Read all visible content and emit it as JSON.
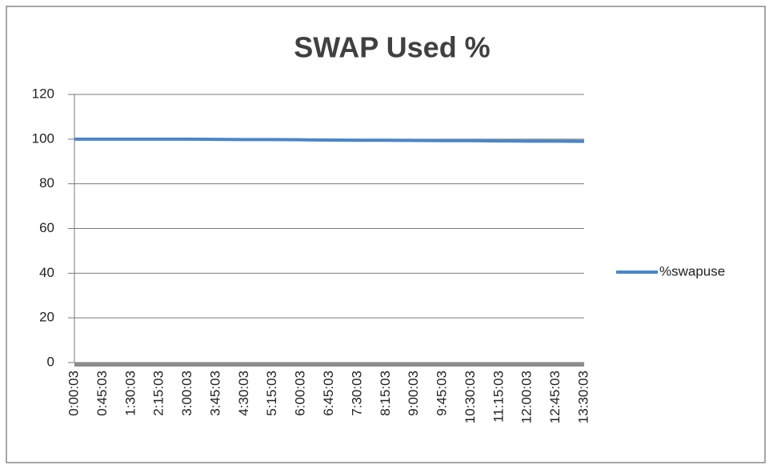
{
  "chart_data": {
    "type": "line",
    "title": "SWAP Used %",
    "categories": [
      "0:00:03",
      "0:45:03",
      "1:30:03",
      "2:15:03",
      "3:00:03",
      "3:45:03",
      "4:30:03",
      "5:15:03",
      "6:00:03",
      "6:45:03",
      "7:30:03",
      "8:15:03",
      "9:00:03",
      "9:45:03",
      "10:30:03",
      "11:15:03",
      "12:00:03",
      "12:45:03",
      "13:30:03"
    ],
    "series": [
      {
        "name": "%swapuse",
        "color": "#4a86c8",
        "values": [
          100,
          100,
          100,
          100,
          100,
          99.9,
          99.8,
          99.8,
          99.7,
          99.6,
          99.5,
          99.5,
          99.4,
          99.3,
          99.3,
          99.2,
          99.1,
          99.1,
          99
        ]
      }
    ],
    "ylim": [
      0,
      120
    ],
    "yticks": [
      0,
      20,
      40,
      60,
      80,
      100,
      120
    ],
    "grid": true,
    "legend": "right"
  }
}
